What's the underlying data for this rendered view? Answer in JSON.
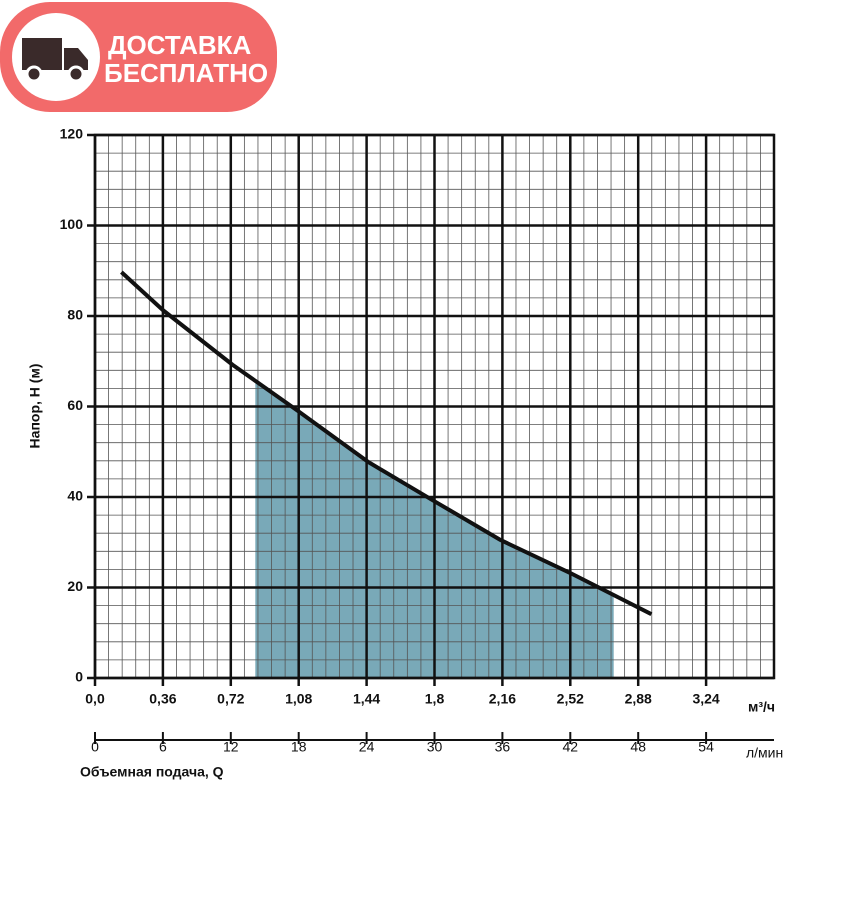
{
  "badge": {
    "line1": "ДОСТАВКА",
    "line2": "БЕСПЛАТНО"
  },
  "chart_data": {
    "type": "line",
    "ylabel": "Напор, Н (м)",
    "xlabel": "Объемная подача, Q",
    "x_unit": "м³/ч",
    "x2_unit": "л/мин",
    "xlim": [
      0,
      3.6
    ],
    "xticks": [
      {
        "value": 0,
        "label": "0,0"
      },
      {
        "value": 0.36,
        "label": "0,36"
      },
      {
        "value": 0.72,
        "label": "0,72"
      },
      {
        "value": 1.08,
        "label": "1,08"
      },
      {
        "value": 1.44,
        "label": "1,44"
      },
      {
        "value": 1.8,
        "label": "1,8"
      },
      {
        "value": 2.16,
        "label": "2,16"
      },
      {
        "value": 2.52,
        "label": "2,52"
      },
      {
        "value": 2.88,
        "label": "2,88"
      },
      {
        "value": 3.24,
        "label": "3,24"
      }
    ],
    "x2lim": [
      0,
      60
    ],
    "x2ticks": [
      0,
      6,
      12,
      18,
      24,
      30,
      36,
      42,
      48,
      54
    ],
    "ylim": [
      0,
      120
    ],
    "yticks": [
      0,
      20,
      40,
      60,
      80,
      100,
      120
    ],
    "grid": true,
    "minor_per_major": 5,
    "series": [
      {
        "color": "#111111",
        "x": [
          0.14,
          0.36,
          0.73,
          1.07,
          1.45,
          1.79,
          2.15,
          2.52,
          2.95
        ],
        "values": [
          89.7,
          81.3,
          69.2,
          59.2,
          47.7,
          39.3,
          30.5,
          23.2,
          14.1
        ]
      }
    ],
    "working_range": [
      0.85,
      2.75
    ],
    "working_color": "#79a9b8"
  }
}
